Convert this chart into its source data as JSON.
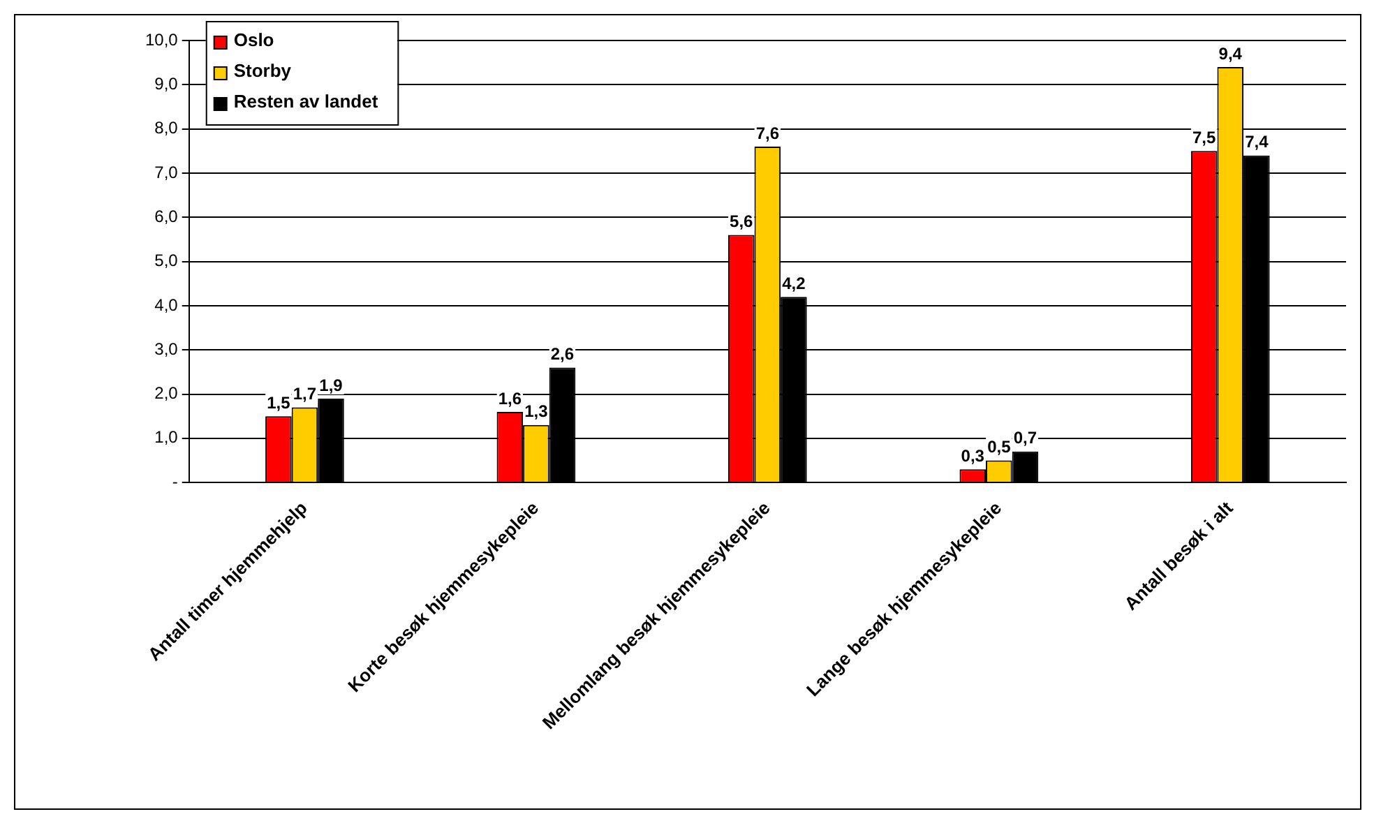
{
  "chart_data": {
    "type": "bar",
    "categories": [
      "Antall timer hjemmehjelp",
      "Korte besøk hjemmesykepleie",
      "Mellomlang besøk hjemmesykepleie",
      "Lange besøk hjemmesykepleie",
      "Antall besøk i alt"
    ],
    "series": [
      {
        "name": "Oslo",
        "color": "#ff0000",
        "values": [
          1.5,
          1.6,
          5.6,
          0.3,
          7.5
        ],
        "value_labels": [
          "1,5",
          "1,6",
          "5,6",
          "0,3",
          "7,5"
        ]
      },
      {
        "name": "Storby",
        "color": "#ffcc00",
        "values": [
          1.7,
          1.3,
          7.6,
          0.5,
          9.4
        ],
        "value_labels": [
          "1,7",
          "1,3",
          "7,6",
          "0,5",
          "9,4"
        ]
      },
      {
        "name": "Resten av landet",
        "color": "#000000",
        "values": [
          1.9,
          2.6,
          4.2,
          0.7,
          7.4
        ],
        "value_labels": [
          "1,9",
          "2,6",
          "4,2",
          "0,7",
          "7,4"
        ]
      }
    ],
    "ylim": [
      0,
      10
    ],
    "yticks": [
      {
        "value": 0,
        "label": "-"
      },
      {
        "value": 1,
        "label": "1,0"
      },
      {
        "value": 2,
        "label": "2,0"
      },
      {
        "value": 3,
        "label": "3,0"
      },
      {
        "value": 4,
        "label": "4,0"
      },
      {
        "value": 5,
        "label": "5,0"
      },
      {
        "value": 6,
        "label": "6,0"
      },
      {
        "value": 7,
        "label": "7,0"
      },
      {
        "value": 8,
        "label": "8,0"
      },
      {
        "value": 9,
        "label": "9,0"
      },
      {
        "value": 10,
        "label": "10,0"
      }
    ],
    "grid": "y",
    "legend": "top left"
  }
}
